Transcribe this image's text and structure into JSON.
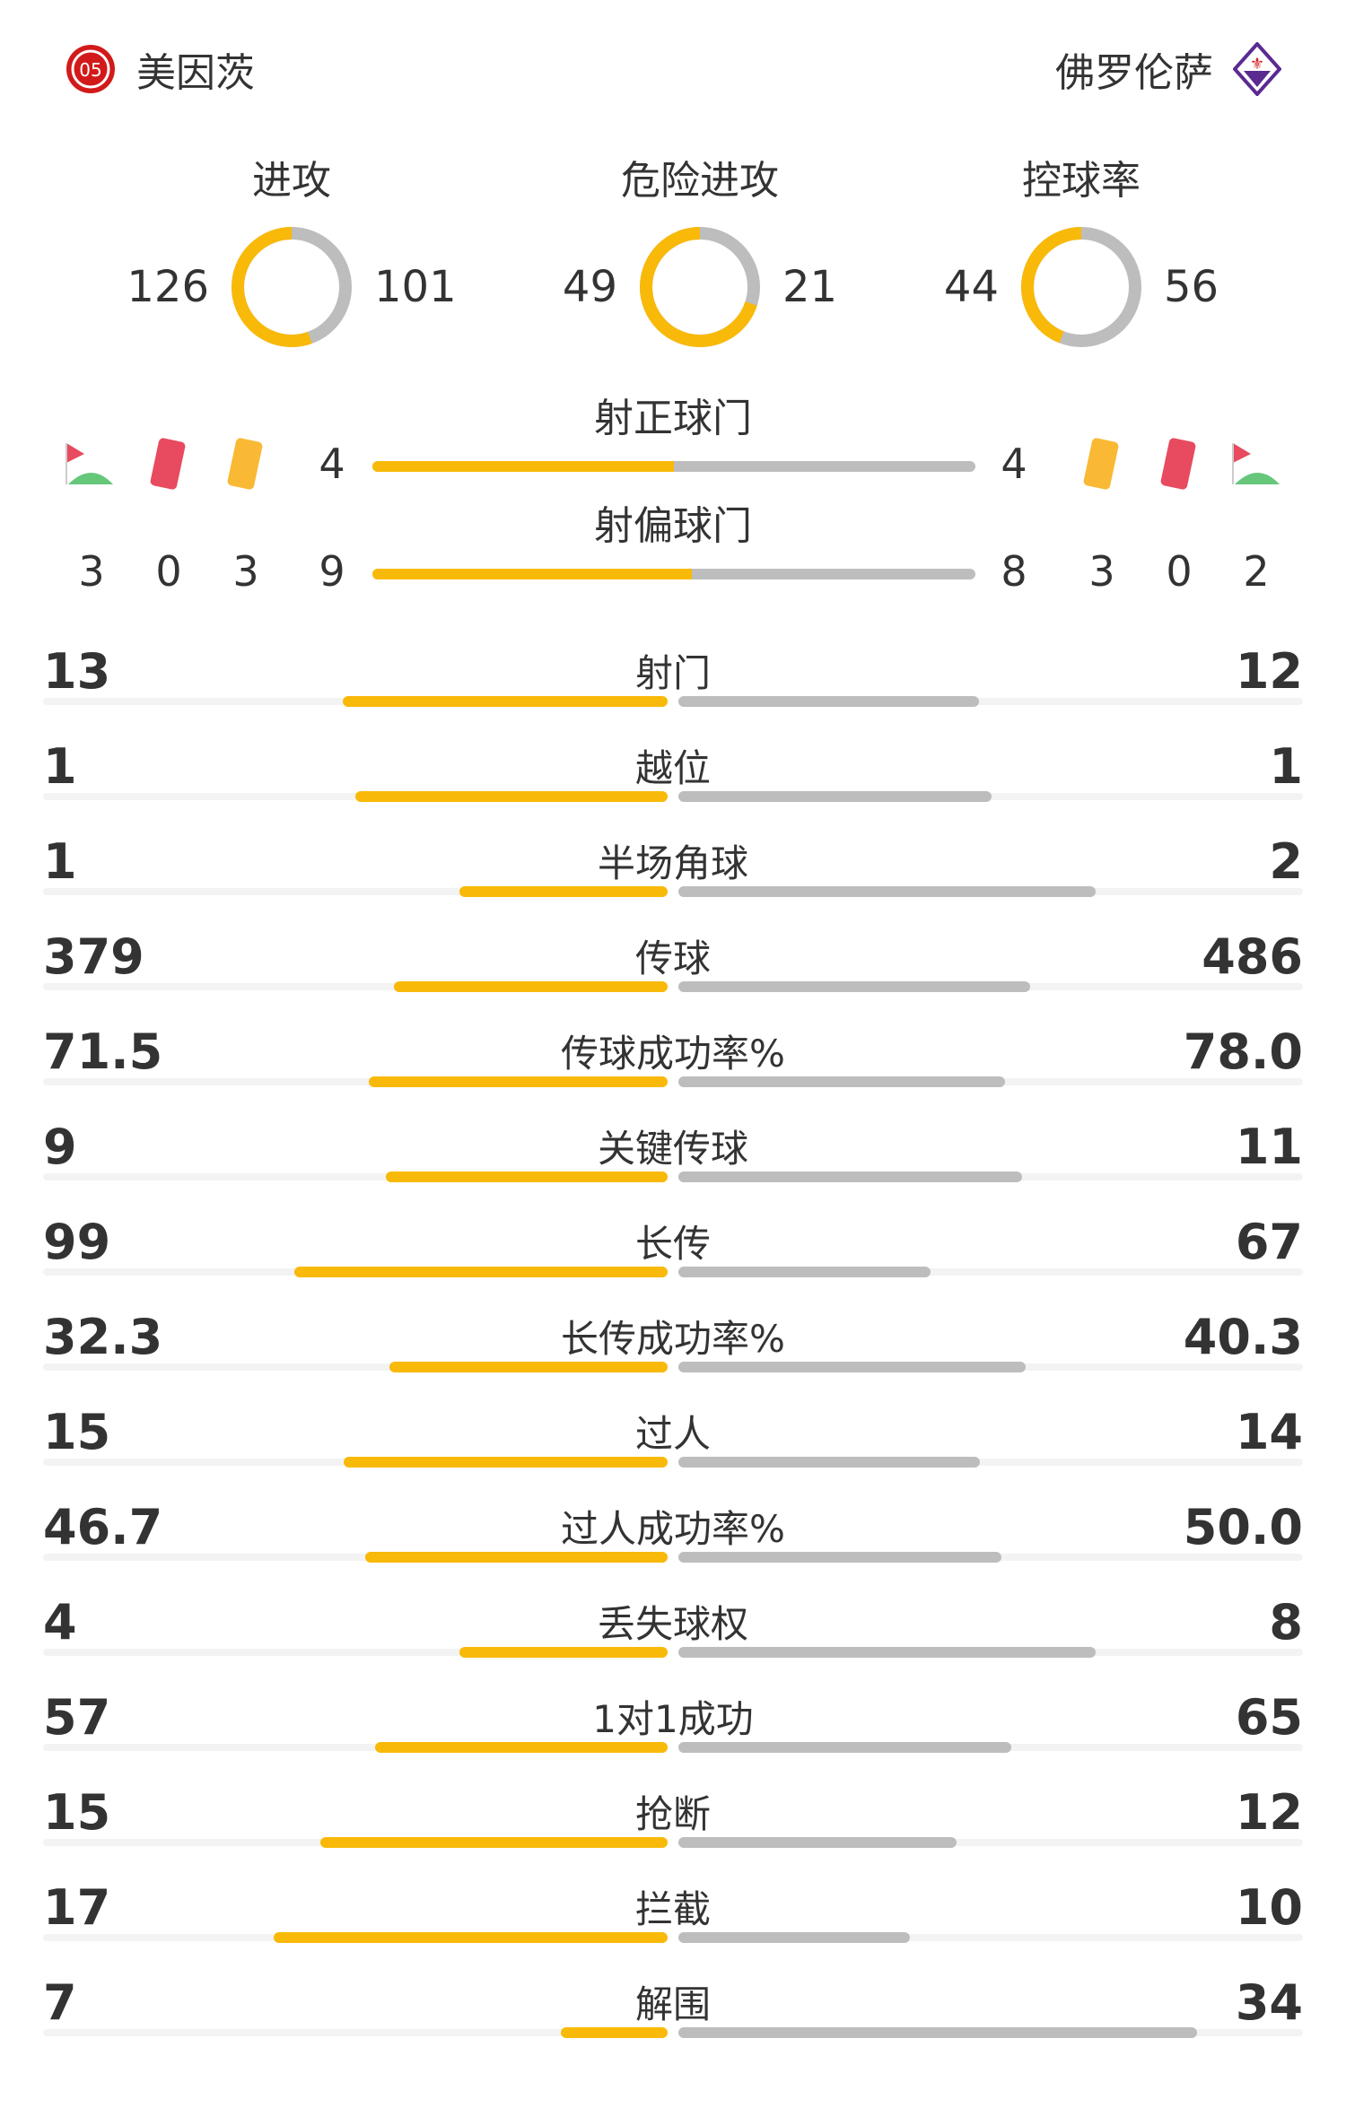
{
  "home": {
    "name": "美因茨",
    "logo": "mainz-crest",
    "color": "#f9b908"
  },
  "away": {
    "name": "佛罗伦萨",
    "logo": "fiorentina-crest",
    "color": "#bdbdbd"
  },
  "donuts": [
    {
      "title": "进攻",
      "home": 126,
      "away": 101
    },
    {
      "title": "危险进攻",
      "home": 49,
      "away": 21
    },
    {
      "title": "控球率",
      "home": 44,
      "away": 56
    }
  ],
  "shots_on_target": {
    "title": "射正球门",
    "home": 4,
    "away": 4
  },
  "shots_off_target": {
    "title": "射偏球门",
    "home": 9,
    "away": 8
  },
  "home_counts": {
    "corners": 3,
    "red_cards": 0,
    "yellow_cards": 3
  },
  "away_counts": {
    "corners": 2,
    "red_cards": 0,
    "yellow_cards": 3
  },
  "icons": {
    "corner": "corner-flag-icon",
    "red": "red-card-icon",
    "yellow": "yellow-card-icon"
  },
  "stats": [
    {
      "name": "射门",
      "home": "13",
      "away": "12"
    },
    {
      "name": "越位",
      "home": "1",
      "away": "1"
    },
    {
      "name": "半场角球",
      "home": "1",
      "away": "2"
    },
    {
      "name": "传球",
      "home": "379",
      "away": "486"
    },
    {
      "name": "传球成功率%",
      "home": "71.5",
      "away": "78.0"
    },
    {
      "name": "关键传球",
      "home": "9",
      "away": "11"
    },
    {
      "name": "长传",
      "home": "99",
      "away": "67"
    },
    {
      "name": "长传成功率%",
      "home": "32.3",
      "away": "40.3"
    },
    {
      "name": "过人",
      "home": "15",
      "away": "14"
    },
    {
      "name": "过人成功率%",
      "home": "46.7",
      "away": "50.0"
    },
    {
      "name": "丢失球权",
      "home": "4",
      "away": "8"
    },
    {
      "name": "1对1成功",
      "home": "57",
      "away": "65"
    },
    {
      "name": "抢断",
      "home": "15",
      "away": "12"
    },
    {
      "name": "拦截",
      "home": "17",
      "away": "10"
    },
    {
      "name": "解围",
      "home": "7",
      "away": "34"
    }
  ]
}
